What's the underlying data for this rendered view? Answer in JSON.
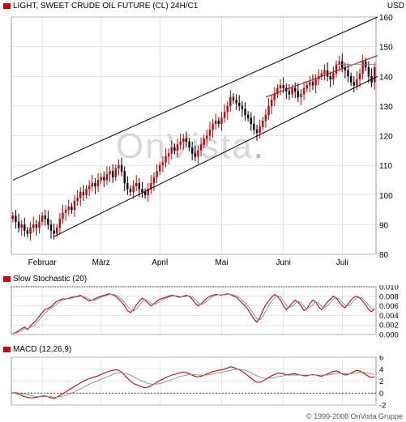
{
  "colors": {
    "accent_red": "#cc0000",
    "bar_up": "#cc0000",
    "grid": "#cccccc",
    "watermark": "#d8d8d8",
    "signal": "#888888"
  },
  "header": {
    "title": "LIGHT, SWEET CRUDE OIL FUTURE (CL) 24H/C1",
    "currency": "USD"
  },
  "stoch_header": {
    "title": "Slow Stochastic (20)"
  },
  "macd_header": {
    "title": "MACD (12,26,9)"
  },
  "watermark": {
    "brand": "OnVista",
    "dot": "."
  },
  "footer": {
    "copyright": "© 1999-2008 OnVista Gruppe"
  },
  "chart_data": [
    {
      "type": "candlestick",
      "title": "LIGHT, SWEET CRUDE OIL FUTURE (CL) 24H/C1",
      "ylabel": "USD",
      "ylim": [
        80,
        160
      ],
      "yticks": [
        80,
        90,
        100,
        110,
        120,
        130,
        140,
        150,
        160
      ],
      "x_labels": [
        {
          "label": "Februar",
          "index": 10
        },
        {
          "label": "März",
          "index": 30
        },
        {
          "label": "April",
          "index": 50
        },
        {
          "label": "Mai",
          "index": 71
        },
        {
          "label": "Juni",
          "index": 92
        },
        {
          "label": "Juli",
          "index": 112
        }
      ],
      "n_periods": 124,
      "close": [
        93,
        91,
        89,
        90,
        88,
        87,
        89,
        90,
        89,
        91,
        93,
        92,
        90,
        88,
        87,
        89,
        92,
        94,
        95,
        96,
        95,
        98,
        99,
        101,
        100,
        102,
        103,
        104,
        103,
        105,
        106,
        105,
        107,
        108,
        106,
        109,
        110,
        108,
        104,
        102,
        101,
        103,
        104,
        102,
        101,
        100,
        102,
        104,
        106,
        108,
        110,
        111,
        113,
        114,
        116,
        115,
        117,
        118,
        119,
        118,
        116,
        114,
        113,
        115,
        117,
        119,
        120,
        122,
        124,
        125,
        124,
        126,
        128,
        130,
        133,
        132,
        131,
        130,
        129,
        127,
        126,
        124,
        122,
        121,
        123,
        125,
        127,
        130,
        132,
        134,
        136,
        137,
        136,
        135,
        134,
        136,
        135,
        133,
        134,
        136,
        137,
        138,
        137,
        139,
        140,
        141,
        142,
        140,
        139,
        141,
        144,
        145,
        143,
        142,
        140,
        138,
        137,
        139,
        141,
        145,
        143,
        140,
        138,
        143
      ],
      "trend_channel": [
        {
          "from": [
            14,
            86
          ],
          "to": [
            124,
            140
          ]
        },
        {
          "from": [
            0,
            105
          ],
          "to": [
            124,
            160
          ]
        }
      ],
      "resistance_line": {
        "from": [
          86,
          133
        ],
        "to": [
          124,
          147
        ]
      },
      "horizontal_level": 144
    },
    {
      "type": "line",
      "title": "Slow Stochastic (20)",
      "ylim": [
        0,
        0.01
      ],
      "yticks": [
        "0.000",
        "0.002",
        "0.004",
        "0.006",
        "0.008",
        "0.010"
      ],
      "series": [
        {
          "name": "%K",
          "values": [
            0.0002,
            0.0004,
            0.0008,
            0.0012,
            0.0016,
            0.001,
            0.0018,
            0.0024,
            0.003,
            0.0038,
            0.0046,
            0.0052,
            0.0055,
            0.0058,
            0.0064,
            0.007,
            0.0072,
            0.0075,
            0.0074,
            0.0076,
            0.0078,
            0.0079,
            0.008,
            0.0082,
            0.0078,
            0.0074,
            0.007,
            0.0072,
            0.0075,
            0.0078,
            0.008,
            0.0082,
            0.0084,
            0.0085,
            0.0083,
            0.008,
            0.0074,
            0.0068,
            0.006,
            0.005,
            0.0046,
            0.0052,
            0.0062,
            0.007,
            0.0076,
            0.0072,
            0.0066,
            0.006,
            0.0064,
            0.007,
            0.0074,
            0.0076,
            0.0078,
            0.008,
            0.0082,
            0.0081,
            0.0079,
            0.0078,
            0.008,
            0.0082,
            0.008,
            0.0074,
            0.0066,
            0.006,
            0.0064,
            0.007,
            0.0076,
            0.008,
            0.0082,
            0.0084,
            0.0083,
            0.0082,
            0.0084,
            0.0085,
            0.0084,
            0.008,
            0.0078,
            0.0072,
            0.0066,
            0.006,
            0.0052,
            0.0042,
            0.0032,
            0.0026,
            0.0036,
            0.005,
            0.0062,
            0.007,
            0.0078,
            0.0084,
            0.008,
            0.0072,
            0.006,
            0.0052,
            0.0058,
            0.0066,
            0.0072,
            0.0068,
            0.006,
            0.005,
            0.0054,
            0.0064,
            0.0072,
            0.0068,
            0.0058,
            0.0052,
            0.006,
            0.0068,
            0.0074,
            0.008,
            0.0076,
            0.0068,
            0.006,
            0.0056,
            0.0064,
            0.0072,
            0.0078,
            0.008,
            0.0076,
            0.007,
            0.0062,
            0.0052,
            0.0048,
            0.0054
          ]
        },
        {
          "name": "%D",
          "values": [
            0.0002,
            0.0003,
            0.0005,
            0.0008,
            0.0012,
            0.0013,
            0.0015,
            0.0017,
            0.0024,
            0.0031,
            0.0038,
            0.0045,
            0.0051,
            0.0055,
            0.0059,
            0.0064,
            0.0069,
            0.0072,
            0.0074,
            0.0075,
            0.0076,
            0.0078,
            0.0079,
            0.008,
            0.008,
            0.0078,
            0.0074,
            0.0072,
            0.0072,
            0.0075,
            0.0078,
            0.008,
            0.0082,
            0.0084,
            0.0084,
            0.0083,
            0.0079,
            0.0074,
            0.0067,
            0.0059,
            0.0052,
            0.0049,
            0.0053,
            0.0061,
            0.0069,
            0.0073,
            0.0071,
            0.0066,
            0.0063,
            0.0065,
            0.0069,
            0.0073,
            0.0076,
            0.0078,
            0.008,
            0.0081,
            0.0081,
            0.0079,
            0.0079,
            0.008,
            0.0081,
            0.0079,
            0.0073,
            0.0067,
            0.0063,
            0.0065,
            0.007,
            0.0075,
            0.0079,
            0.0082,
            0.0083,
            0.0083,
            0.0083,
            0.0084,
            0.0084,
            0.0083,
            0.0081,
            0.0077,
            0.0072,
            0.0066,
            0.0059,
            0.0051,
            0.0042,
            0.0033,
            0.0031,
            0.0037,
            0.0049,
            0.0061,
            0.007,
            0.0077,
            0.0081,
            0.0079,
            0.0071,
            0.0061,
            0.0057,
            0.0059,
            0.0065,
            0.0069,
            0.0067,
            0.0059,
            0.0055,
            0.0056,
            0.0063,
            0.0068,
            0.0066,
            0.0059,
            0.0057,
            0.006,
            0.0067,
            0.0074,
            0.0077,
            0.0075,
            0.0068,
            0.0061,
            0.006,
            0.0064,
            0.0071,
            0.0077,
            0.0078,
            0.0075,
            0.0069,
            0.0061,
            0.0054,
            0.0051
          ]
        }
      ]
    },
    {
      "type": "line",
      "title": "MACD (12,26,9)",
      "ylim": [
        -2,
        6
      ],
      "yticks": [
        -2,
        0,
        2,
        4,
        6
      ],
      "zero_line": true,
      "series": [
        {
          "name": "MACD",
          "values": [
            0.1,
            0.0,
            -0.2,
            -0.4,
            -0.6,
            -0.7,
            -0.8,
            -0.8,
            -0.7,
            -0.6,
            -0.5,
            -0.5,
            -0.6,
            -0.8,
            -0.9,
            -0.7,
            -0.4,
            -0.1,
            0.2,
            0.5,
            0.8,
            1.1,
            1.4,
            1.7,
            2.0,
            2.2,
            2.4,
            2.6,
            2.7,
            2.9,
            3.1,
            3.3,
            3.5,
            3.7,
            3.8,
            3.9,
            3.8,
            3.5,
            3.0,
            2.5,
            2.0,
            1.6,
            1.4,
            1.2,
            1.0,
            0.9,
            1.0,
            1.2,
            1.5,
            1.8,
            2.1,
            2.3,
            2.6,
            2.8,
            3.0,
            3.1,
            3.3,
            3.4,
            3.5,
            3.4,
            3.2,
            3.0,
            2.8,
            2.7,
            2.8,
            3.0,
            3.2,
            3.4,
            3.6,
            3.7,
            3.8,
            3.9,
            4.0,
            4.2,
            4.4,
            4.3,
            4.1,
            3.9,
            3.6,
            3.3,
            2.9,
            2.5,
            2.1,
            1.8,
            1.8,
            2.0,
            2.3,
            2.6,
            2.9,
            3.1,
            3.3,
            3.3,
            3.2,
            3.1,
            3.1,
            3.2,
            3.2,
            3.1,
            3.0,
            2.9,
            2.9,
            3.0,
            3.1,
            3.0,
            2.9,
            2.8,
            3.0,
            3.2,
            3.4,
            3.6,
            3.7,
            3.5,
            3.2,
            3.0,
            3.1,
            3.3,
            3.6,
            3.8,
            3.7,
            3.4,
            3.1,
            2.8,
            2.6,
            2.7
          ]
        },
        {
          "name": "Signal",
          "values": [
            0.1,
            0.1,
            0.0,
            -0.1,
            -0.2,
            -0.3,
            -0.4,
            -0.5,
            -0.6,
            -0.6,
            -0.6,
            -0.6,
            -0.6,
            -0.6,
            -0.7,
            -0.7,
            -0.6,
            -0.5,
            -0.4,
            -0.2,
            0.0,
            0.2,
            0.5,
            0.7,
            1.0,
            1.2,
            1.5,
            1.7,
            1.9,
            2.1,
            2.3,
            2.5,
            2.7,
            2.9,
            3.1,
            3.3,
            3.4,
            3.4,
            3.3,
            3.2,
            3.0,
            2.7,
            2.5,
            2.2,
            2.0,
            1.8,
            1.6,
            1.5,
            1.5,
            1.5,
            1.6,
            1.7,
            1.9,
            2.1,
            2.2,
            2.4,
            2.6,
            2.8,
            2.9,
            3.0,
            3.1,
            3.1,
            3.1,
            3.0,
            3.0,
            3.0,
            3.0,
            3.1,
            3.2,
            3.3,
            3.4,
            3.5,
            3.6,
            3.7,
            3.8,
            3.9,
            4.0,
            4.0,
            3.9,
            3.8,
            3.6,
            3.4,
            3.1,
            2.9,
            2.7,
            2.5,
            2.5,
            2.5,
            2.5,
            2.6,
            2.7,
            2.8,
            2.9,
            3.0,
            3.0,
            3.0,
            3.0,
            3.0,
            3.0,
            3.0,
            3.0,
            3.0,
            3.0,
            3.0,
            3.0,
            3.0,
            3.0,
            3.0,
            3.1,
            3.2,
            3.3,
            3.3,
            3.3,
            3.2,
            3.2,
            3.2,
            3.3,
            3.4,
            3.5,
            3.5,
            3.4,
            3.3,
            3.2,
            3.1
          ]
        }
      ]
    }
  ]
}
